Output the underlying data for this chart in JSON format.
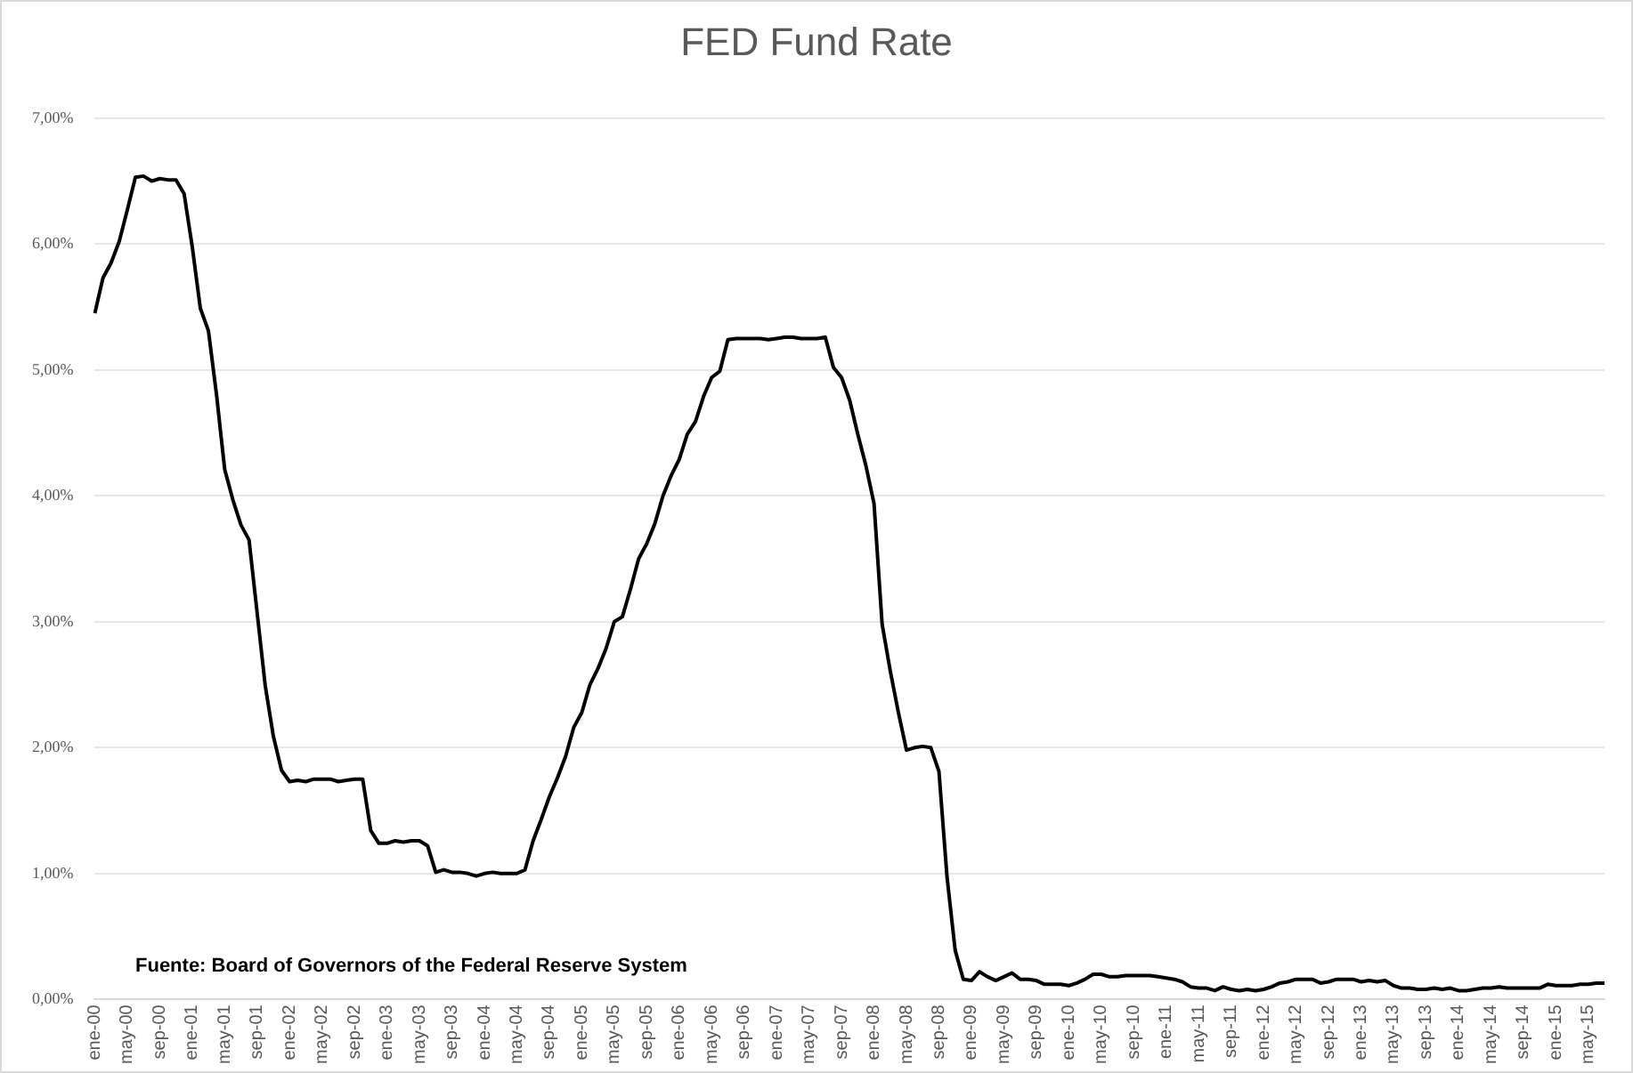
{
  "chart_data": {
    "type": "line",
    "title": "FED Fund Rate",
    "categories": [
      "ene-00",
      null,
      null,
      null,
      "may-00",
      null,
      null,
      null,
      "sep-00",
      null,
      null,
      null,
      "ene-01",
      null,
      null,
      null,
      "may-01",
      null,
      null,
      null,
      "sep-01",
      null,
      null,
      null,
      "ene-02",
      null,
      null,
      null,
      "may-02",
      null,
      null,
      null,
      "sep-02",
      null,
      null,
      null,
      "ene-03",
      null,
      null,
      null,
      "may-03",
      null,
      null,
      null,
      "sep-03",
      null,
      null,
      null,
      "ene-04",
      null,
      null,
      null,
      "may-04",
      null,
      null,
      null,
      "sep-04",
      null,
      null,
      null,
      "ene-05",
      null,
      null,
      null,
      "may-05",
      null,
      null,
      null,
      "sep-05",
      null,
      null,
      null,
      "ene-06",
      null,
      null,
      null,
      "may-06",
      null,
      null,
      null,
      "sep-06",
      null,
      null,
      null,
      "ene-07",
      null,
      null,
      null,
      "may-07",
      null,
      null,
      null,
      "sep-07",
      null,
      null,
      null,
      "ene-08",
      null,
      null,
      null,
      "may-08",
      null,
      null,
      null,
      "sep-08",
      null,
      null,
      null,
      "ene-09",
      null,
      null,
      null,
      "may-09",
      null,
      null,
      null,
      "sep-09",
      null,
      null,
      null,
      "ene-10",
      null,
      null,
      null,
      "may-10",
      null,
      null,
      null,
      "sep-10",
      null,
      null,
      null,
      "ene-11",
      null,
      null,
      null,
      "may-11",
      null,
      null,
      null,
      "sep-11",
      null,
      null,
      null,
      "ene-12",
      null,
      null,
      null,
      "may-12",
      null,
      null,
      null,
      "sep-12",
      null,
      null,
      null,
      "ene-13",
      null,
      null,
      null,
      "may-13",
      null,
      null,
      null,
      "sep-13",
      null,
      null,
      null,
      "ene-14",
      null,
      null,
      null,
      "may-14",
      null,
      null,
      null,
      "sep-14",
      null,
      null,
      null,
      "ene-15",
      null,
      null,
      null,
      "may-15",
      null,
      null
    ],
    "series": [
      {
        "color": "#000000",
        "values": [
          5.45,
          5.73,
          5.85,
          6.02,
          6.27,
          6.53,
          6.54,
          6.5,
          6.52,
          6.51,
          6.51,
          6.4,
          5.98,
          5.49,
          5.31,
          4.8,
          4.21,
          3.97,
          3.77,
          3.65,
          3.07,
          2.49,
          2.09,
          1.82,
          1.73,
          1.74,
          1.73,
          1.75,
          1.75,
          1.75,
          1.73,
          1.74,
          1.75,
          1.75,
          1.34,
          1.24,
          1.24,
          1.26,
          1.25,
          1.26,
          1.26,
          1.22,
          1.01,
          1.03,
          1.01,
          1.01,
          1.0,
          0.98,
          1.0,
          1.01,
          1.0,
          1.0,
          1.0,
          1.03,
          1.26,
          1.43,
          1.61,
          1.76,
          1.93,
          2.16,
          2.28,
          2.5,
          2.63,
          2.79,
          3.0,
          3.04,
          3.26,
          3.5,
          3.62,
          3.78,
          4.0,
          4.16,
          4.29,
          4.49,
          4.59,
          4.79,
          4.94,
          4.99,
          5.24,
          5.25,
          5.25,
          5.25,
          5.25,
          5.24,
          5.25,
          5.26,
          5.26,
          5.25,
          5.25,
          5.25,
          5.26,
          5.02,
          4.94,
          4.76,
          4.49,
          4.24,
          3.94,
          2.98,
          2.61,
          2.28,
          1.98,
          2.0,
          2.01,
          2.0,
          1.81,
          0.97,
          0.39,
          0.16,
          0.15,
          0.22,
          0.18,
          0.15,
          0.18,
          0.21,
          0.16,
          0.16,
          0.15,
          0.12,
          0.12,
          0.12,
          0.11,
          0.13,
          0.16,
          0.2,
          0.2,
          0.18,
          0.18,
          0.19,
          0.19,
          0.19,
          0.19,
          0.18,
          0.17,
          0.16,
          0.14,
          0.1,
          0.09,
          0.09,
          0.07,
          0.1,
          0.08,
          0.07,
          0.08,
          0.07,
          0.08,
          0.1,
          0.13,
          0.14,
          0.16,
          0.16,
          0.16,
          0.13,
          0.14,
          0.16,
          0.16,
          0.16,
          0.14,
          0.15,
          0.14,
          0.15,
          0.11,
          0.09,
          0.09,
          0.08,
          0.08,
          0.09,
          0.08,
          0.09,
          0.07,
          0.07,
          0.08,
          0.09,
          0.09,
          0.1,
          0.09,
          0.09,
          0.09,
          0.09,
          0.09,
          0.12,
          0.11,
          0.11,
          0.11,
          0.12,
          0.12,
          0.13,
          0.13
        ]
      }
    ],
    "ylim": [
      0,
      7
    ],
    "yticks": [
      {
        "value": 0,
        "label": "0,00%"
      },
      {
        "value": 1,
        "label": "1,00%"
      },
      {
        "value": 2,
        "label": "2,00%"
      },
      {
        "value": 3,
        "label": "3,00%"
      },
      {
        "value": 4,
        "label": "4,00%"
      },
      {
        "value": 5,
        "label": "5,00%"
      },
      {
        "value": 6,
        "label": "6,00%"
      },
      {
        "value": 7,
        "label": "7,00%"
      }
    ],
    "grid": "y",
    "legend": false,
    "marker": "none",
    "line_style": "solid",
    "annotations": [
      "Fuente: Board of Governors of the Federal Reserve System"
    ]
  }
}
